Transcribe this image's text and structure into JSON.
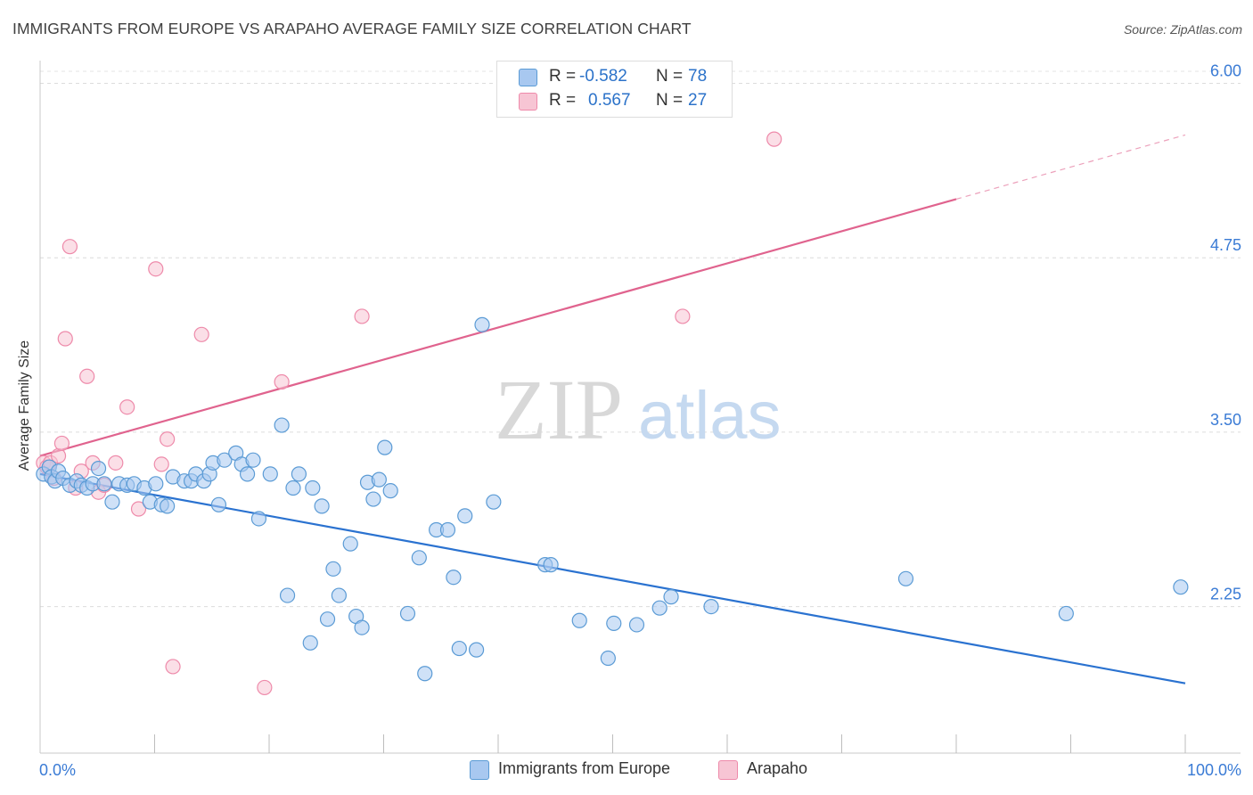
{
  "header": {
    "title": "IMMIGRANTS FROM EUROPE VS ARAPAHO AVERAGE FAMILY SIZE CORRELATION CHART",
    "source": "Source: ZipAtlas.com"
  },
  "watermark": {
    "zip": "ZIP",
    "atlas": "atlas"
  },
  "legend": {
    "rows": [
      {
        "r_label": "R =",
        "r_value": "-0.582",
        "n_label": "N =",
        "n_value": "78",
        "color": "#a8c8f0"
      },
      {
        "r_label": "R =",
        "r_value": "0.567",
        "n_label": "N =",
        "n_value": "27",
        "color": "#f7b8cb"
      }
    ]
  },
  "chart_data": {
    "type": "scatter",
    "title": "IMMIGRANTS FROM EUROPE VS ARAPAHO AVERAGE FAMILY SIZE CORRELATION CHART",
    "xlabel": "",
    "ylabel": "Average Family Size",
    "xlim": [
      0,
      100
    ],
    "ylim": [
      1.2,
      6.15
    ],
    "x_tick_labels": [
      "0.0%",
      "100.0%"
    ],
    "y_ticks": [
      2.25,
      3.5,
      4.75,
      6.0
    ],
    "y_tick_labels": [
      "2.25",
      "3.50",
      "4.75",
      "6.00"
    ],
    "grid": true,
    "colors": {
      "europe": "#5b9bd5",
      "europe_fill": "#a8c8f0",
      "europe_line": "#2a72d0",
      "arapaho": "#ee8aaa",
      "arapaho_fill": "#f7c5d4",
      "arapaho_line": "#e0638e",
      "tick_text": "#3a7bd5"
    },
    "series": [
      {
        "name": "Immigrants from Europe",
        "r": -0.582,
        "n": 78,
        "trend": {
          "x": [
            0,
            100
          ],
          "y": [
            3.2,
            1.7
          ]
        },
        "points": [
          [
            0.3,
            3.2
          ],
          [
            0.8,
            3.25
          ],
          [
            1,
            3.18
          ],
          [
            1.3,
            3.15
          ],
          [
            1.6,
            3.22
          ],
          [
            2,
            3.17
          ],
          [
            2.6,
            3.12
          ],
          [
            3.2,
            3.15
          ],
          [
            3.6,
            3.12
          ],
          [
            4.1,
            3.1
          ],
          [
            4.6,
            3.13
          ],
          [
            5.1,
            3.24
          ],
          [
            5.6,
            3.13
          ],
          [
            6.3,
            3.0
          ],
          [
            6.9,
            3.13
          ],
          [
            7.6,
            3.12
          ],
          [
            8.2,
            3.13
          ],
          [
            9.1,
            3.1
          ],
          [
            9.6,
            3.0
          ],
          [
            10.1,
            3.13
          ],
          [
            10.6,
            2.98
          ],
          [
            11.1,
            2.97
          ],
          [
            11.6,
            3.18
          ],
          [
            12.6,
            3.15
          ],
          [
            13.2,
            3.15
          ],
          [
            13.6,
            3.2
          ],
          [
            14.3,
            3.15
          ],
          [
            14.8,
            3.2
          ],
          [
            15.1,
            3.28
          ],
          [
            15.6,
            2.98
          ],
          [
            16.1,
            3.3
          ],
          [
            17.1,
            3.35
          ],
          [
            17.6,
            3.27
          ],
          [
            18.1,
            3.2
          ],
          [
            18.6,
            3.3
          ],
          [
            19.1,
            2.88
          ],
          [
            20.1,
            3.2
          ],
          [
            21.1,
            3.55
          ],
          [
            21.6,
            2.33
          ],
          [
            22.1,
            3.1
          ],
          [
            22.6,
            3.2
          ],
          [
            23.6,
            1.99
          ],
          [
            23.8,
            3.1
          ],
          [
            24.6,
            2.97
          ],
          [
            25.1,
            2.16
          ],
          [
            25.6,
            2.52
          ],
          [
            26.1,
            2.33
          ],
          [
            27.1,
            2.7
          ],
          [
            27.6,
            2.18
          ],
          [
            28.1,
            2.1
          ],
          [
            28.6,
            3.14
          ],
          [
            29.1,
            3.02
          ],
          [
            29.6,
            3.16
          ],
          [
            30.1,
            3.39
          ],
          [
            30.6,
            3.08
          ],
          [
            32.1,
            2.2
          ],
          [
            33.1,
            2.6
          ],
          [
            33.6,
            1.77
          ],
          [
            34.6,
            2.8
          ],
          [
            35.6,
            2.8
          ],
          [
            36.1,
            2.46
          ],
          [
            36.6,
            1.95
          ],
          [
            37.1,
            2.9
          ],
          [
            38.1,
            1.94
          ],
          [
            38.6,
            4.27
          ],
          [
            39.6,
            3.0
          ],
          [
            44.1,
            2.55
          ],
          [
            44.6,
            2.55
          ],
          [
            47.1,
            2.15
          ],
          [
            49.6,
            1.88
          ],
          [
            50.1,
            2.13
          ],
          [
            52.1,
            2.12
          ],
          [
            54.1,
            2.24
          ],
          [
            55.1,
            2.32
          ],
          [
            58.6,
            2.25
          ],
          [
            75.6,
            2.45
          ],
          [
            89.6,
            2.2
          ],
          [
            99.6,
            2.39
          ]
        ]
      },
      {
        "name": "Arapaho",
        "r": 0.567,
        "n": 27,
        "trend": {
          "x": [
            0,
            80
          ],
          "y": [
            3.33,
            5.17
          ]
        },
        "points": [
          [
            0.3,
            3.28
          ],
          [
            0.6,
            3.25
          ],
          [
            0.9,
            3.28
          ],
          [
            1.2,
            3.17
          ],
          [
            1.6,
            3.33
          ],
          [
            1.9,
            3.42
          ],
          [
            2.2,
            4.17
          ],
          [
            2.6,
            4.83
          ],
          [
            3.1,
            3.1
          ],
          [
            3.6,
            3.22
          ],
          [
            4.1,
            3.9
          ],
          [
            4.6,
            3.28
          ],
          [
            5.1,
            3.07
          ],
          [
            5.6,
            3.12
          ],
          [
            6.6,
            3.28
          ],
          [
            7.6,
            3.68
          ],
          [
            8.6,
            2.95
          ],
          [
            10.1,
            4.67
          ],
          [
            10.6,
            3.27
          ],
          [
            11.1,
            3.45
          ],
          [
            11.6,
            1.82
          ],
          [
            14.1,
            4.2
          ],
          [
            19.6,
            1.67
          ],
          [
            21.1,
            3.86
          ],
          [
            28.1,
            4.33
          ],
          [
            56.1,
            4.33
          ],
          [
            64.1,
            5.6
          ]
        ]
      }
    ]
  },
  "bottom_legend": {
    "europe_label": "Immigrants from Europe",
    "arapaho_label": "Arapaho"
  }
}
